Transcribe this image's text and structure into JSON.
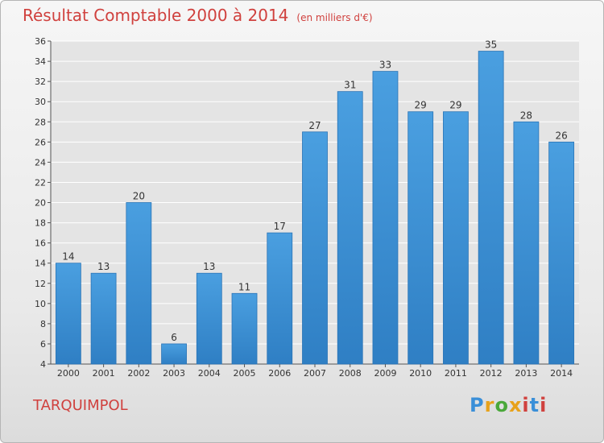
{
  "header": {
    "title": "Résultat Comptable 2000 à 2014",
    "unit": "(en milliers d'€)"
  },
  "footer": {
    "commune": "TARQUIMPOL",
    "logo_text": "Proxiti",
    "logo_colors": [
      "#3a8fd8",
      "#e8a21b",
      "#4aa83a",
      "#e8a21b",
      "#d0413e",
      "#3a8fd8",
      "#d0413e"
    ]
  },
  "chart_data": {
    "type": "bar",
    "title": "Résultat Comptable 2000 à 2014",
    "categories": [
      "2000",
      "2001",
      "2002",
      "2003",
      "2004",
      "2005",
      "2006",
      "2007",
      "2008",
      "2009",
      "2010",
      "2011",
      "2012",
      "2013",
      "2014"
    ],
    "values": [
      14,
      13,
      20,
      6,
      13,
      11,
      17,
      27,
      31,
      33,
      29,
      29,
      35,
      28,
      26
    ],
    "ylim": [
      4,
      36
    ],
    "yticks": [
      4,
      6,
      8,
      10,
      12,
      14,
      16,
      18,
      20,
      22,
      24,
      26,
      28,
      30,
      32,
      34,
      36
    ],
    "grid": true,
    "colors": {
      "bar": "#4a9fe0",
      "bar_dark": "#2f7fc4",
      "grid": "#ffffff",
      "plot_bg": "#e4e4e4"
    }
  }
}
